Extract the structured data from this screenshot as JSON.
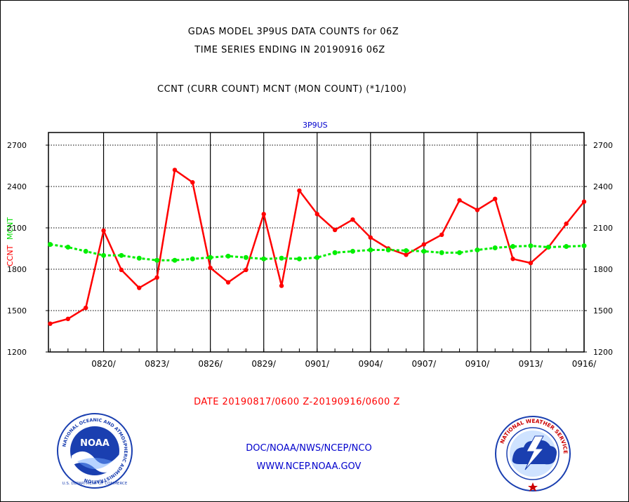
{
  "chart_data": {
    "type": "line",
    "title": "GDAS MODEL 3P9US DATA COUNTS for 06Z",
    "subtitle": "TIME SERIES ENDING IN 20190916 06Z",
    "description_line": "CCNT (CURR COUNT) MCNT (MON COUNT) (*1/100)",
    "plot_title": "3P9US",
    "ylabel_left_ccnt": "CCNT",
    "ylabel_left_mcnt": "MCNT",
    "xlabel": "DATE 20190817/0600 Z-20190916/0600 Z",
    "ylim": [
      1200,
      2790
    ],
    "xlim": [
      0,
      30
    ],
    "yticks": [
      "1200",
      "1500",
      "1800",
      "2100",
      "2400",
      "2700"
    ],
    "xtick_labels": [
      "0820/",
      "0823/",
      "0826/",
      "0829/",
      "0901/",
      "0904/",
      "0907/",
      "0910/",
      "0913/",
      "0916/"
    ],
    "xtick_positions": [
      3,
      6,
      9,
      12,
      15,
      18,
      21,
      24,
      27,
      30
    ],
    "grid": true,
    "series": [
      {
        "name": "CCNT",
        "color": "#ff0000",
        "x": [
          0,
          1,
          2,
          3,
          4,
          5,
          6,
          7,
          8,
          9,
          10,
          11,
          12,
          13,
          14,
          15,
          16,
          17,
          18,
          19,
          20,
          21,
          22,
          23,
          24,
          25,
          26,
          27,
          28,
          29,
          30
        ],
        "values": [
          1405,
          1440,
          1520,
          2080,
          1795,
          1665,
          1740,
          2520,
          2430,
          1810,
          1705,
          1795,
          2200,
          1680,
          2370,
          2200,
          2085,
          2160,
          2030,
          1950,
          1905,
          1980,
          2050,
          2300,
          2230,
          2310,
          1875,
          1845,
          1960,
          2130,
          2290
        ]
      },
      {
        "name": "MCNT",
        "color": "#00ee00",
        "x": [
          0,
          1,
          2,
          3,
          4,
          5,
          6,
          7,
          8,
          9,
          10,
          11,
          12,
          13,
          14,
          15,
          16,
          17,
          18,
          19,
          20,
          21,
          22,
          23,
          24,
          25,
          26,
          27,
          28,
          29,
          30
        ],
        "values": [
          1980,
          1960,
          1930,
          1900,
          1900,
          1880,
          1865,
          1865,
          1875,
          1885,
          1895,
          1885,
          1875,
          1880,
          1875,
          1885,
          1920,
          1930,
          1940,
          1940,
          1935,
          1930,
          1920,
          1920,
          1940,
          1955,
          1965,
          1970,
          1960,
          1965,
          1970
        ]
      }
    ]
  },
  "credits": {
    "line1": "DOC/NOAA/NWS/NCEP/NCO",
    "line2": "WWW.NCEP.NOAA.GOV"
  },
  "logos": {
    "noaa_text": "NOAA",
    "noaa_ring_text": "NATIONAL OCEANIC AND ATMOSPHERIC ADMINISTRATION",
    "noaa_ring_bottom": "U.S. DEPARTMENT OF COMMERCE",
    "nws_ring_text": "NATIONAL WEATHER SERVICE"
  },
  "colors": {
    "ccnt": "#ff0000",
    "mcnt": "#00ee00",
    "credit": "#0000cc",
    "plot_title": "#0000cc"
  }
}
